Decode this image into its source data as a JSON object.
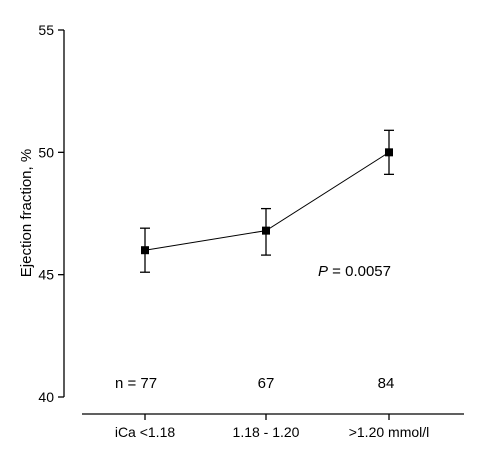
{
  "chart_data": {
    "type": "line",
    "categories": [
      "iCa <1.18",
      "1.18 - 1.20",
      ">1.20 mmol/l"
    ],
    "series": [
      {
        "values": [
          46.0,
          46.8,
          50.0
        ],
        "error_low": [
          45.1,
          45.8,
          49.1
        ],
        "error_high": [
          46.9,
          47.7,
          50.9
        ]
      }
    ],
    "ylabel": "Ejection fraction, %",
    "ylim": [
      40,
      55
    ],
    "yticks": [
      40,
      45,
      50,
      55
    ],
    "ytick_labels": [
      "40",
      "45",
      "50",
      "55"
    ],
    "grid": false,
    "marker": "square",
    "color": "#000000",
    "annotations": {
      "p_label": "P",
      "p_value": " = 0.0057",
      "n_labels": [
        "n = 77",
        "67",
        "84"
      ]
    }
  }
}
